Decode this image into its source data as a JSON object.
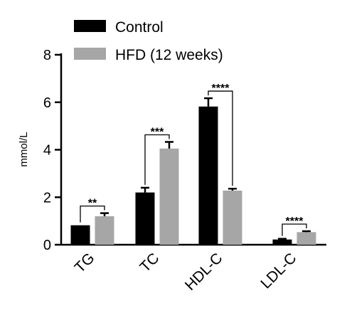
{
  "chart_data": {
    "type": "bar",
    "ylabel": "mmol/L",
    "ylim": [
      0,
      8
    ],
    "yticks": [
      0,
      2,
      4,
      6,
      8
    ],
    "categories": [
      "TG",
      "TC",
      "HDL-C",
      "LDL-C"
    ],
    "legend_position": "top-left",
    "series": [
      {
        "name": "Control",
        "color": "#000000",
        "values": [
          0.82,
          2.2,
          5.82,
          0.22
        ],
        "errors": [
          0,
          0.2,
          0.35,
          0.03
        ]
      },
      {
        "name": "HFD (12 weeks)",
        "color": "#a6a6a6",
        "values": [
          1.2,
          4.05,
          2.28,
          0.53
        ],
        "errors": [
          0.13,
          0.28,
          0.08,
          0.04
        ]
      }
    ],
    "significance": [
      "**",
      "***",
      "****",
      "****"
    ]
  }
}
